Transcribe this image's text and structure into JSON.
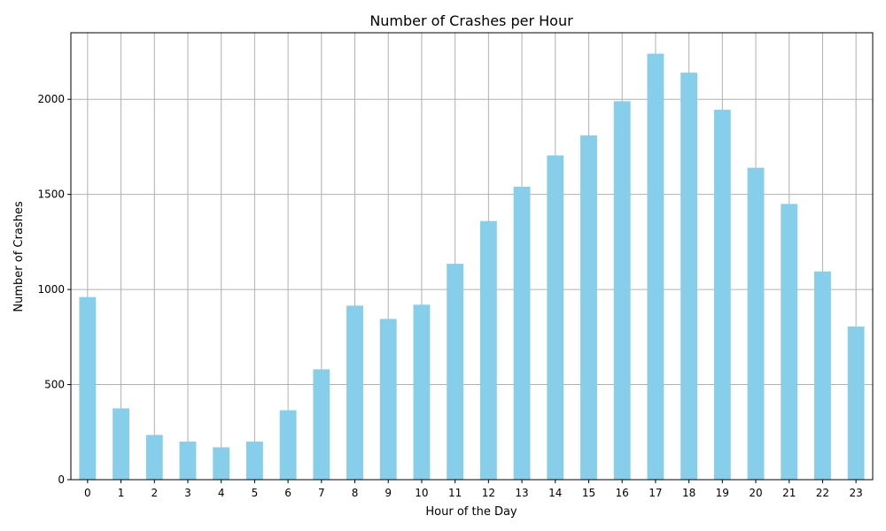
{
  "chart_data": {
    "type": "bar",
    "title": "Number of Crashes per Hour",
    "xlabel": "Hour of the Day",
    "ylabel": "Number of Crashes",
    "categories": [
      "0",
      "1",
      "2",
      "3",
      "4",
      "5",
      "6",
      "7",
      "8",
      "9",
      "10",
      "11",
      "12",
      "13",
      "14",
      "15",
      "16",
      "17",
      "18",
      "19",
      "20",
      "21",
      "22",
      "23"
    ],
    "values": [
      960,
      375,
      235,
      200,
      170,
      200,
      365,
      580,
      915,
      845,
      920,
      1135,
      1360,
      1540,
      1705,
      1810,
      1990,
      2240,
      2140,
      1945,
      1640,
      1450,
      1095,
      805
    ],
    "ylim": [
      0,
      2350
    ],
    "yticks": [
      0,
      500,
      1000,
      1500,
      2000
    ],
    "grid": true,
    "bar_color": "#87ceeb",
    "grid_color": "#b0b0b0"
  }
}
